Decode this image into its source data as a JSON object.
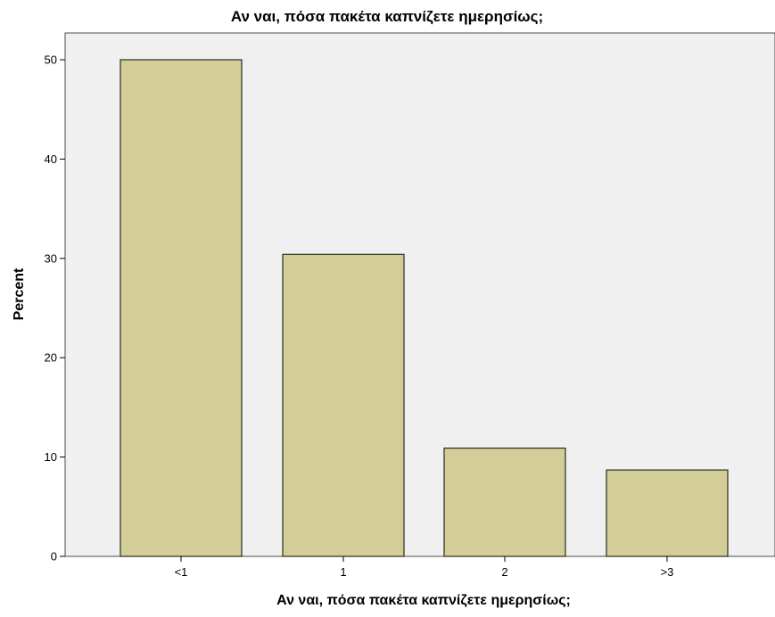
{
  "chart_data": {
    "type": "bar",
    "title": "Αν ναι, πόσα πακέτα καπνίζετε ημερησίως;",
    "xlabel": "Αν ναι, πόσα πακέτα καπνίζετε ημερησίως;",
    "ylabel": "Percent",
    "categories": [
      "<1",
      "1",
      "2",
      ">3"
    ],
    "values": [
      50.0,
      30.4,
      10.9,
      8.7
    ],
    "ylim": [
      0,
      50
    ],
    "yticks": [
      "0",
      "10",
      "20",
      "30",
      "40",
      "50"
    ],
    "grid": false,
    "legend": "none",
    "colors": {
      "bar_fill": "#d3ce97",
      "bar_stroke": "#2b2b1e",
      "plot_background": "#f0f0f0"
    }
  }
}
